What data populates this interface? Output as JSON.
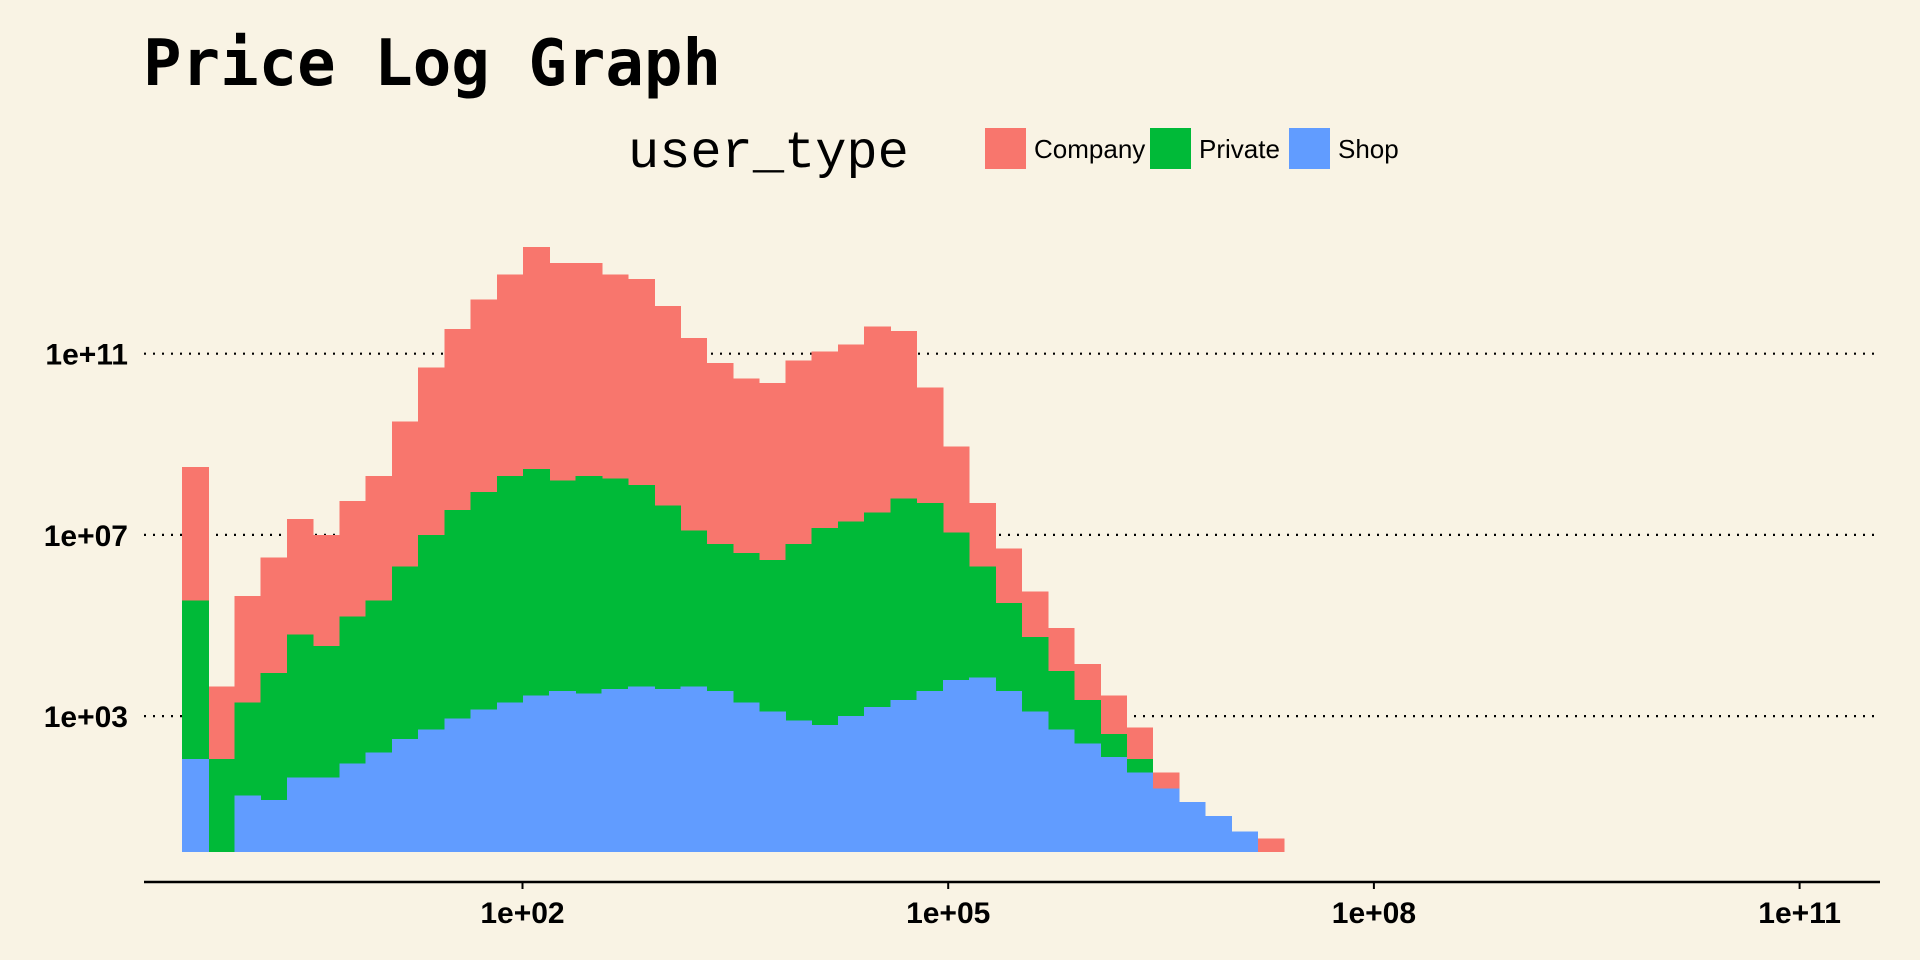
{
  "chart_data": {
    "type": "bar",
    "stacked": true,
    "title": "Price Log Graph",
    "xlabel": "",
    "ylabel": "",
    "x_scale": "log10",
    "y_scale": "log10 cumulative",
    "x_ticks": [
      "1e+02",
      "1e+05",
      "1e+08",
      "1e+11"
    ],
    "y_ticks": [
      "1e+03",
      "1e+07",
      "1e+11"
    ],
    "xlim_log10": [
      -1,
      11.6
    ],
    "ylim_log10": [
      -0.2,
      13.2
    ],
    "bin_range_log10": [
      -0.4,
      7.55
    ],
    "bin_count": 43,
    "grid": "horizontal dotted",
    "legend": {
      "title": "user_type",
      "position": "top",
      "entries": [
        {
          "label": "Company",
          "color": "#F8766D"
        },
        {
          "label": "Private",
          "color": "#00BA38"
        },
        {
          "label": "Shop",
          "color": "#619CFF"
        }
      ]
    },
    "series": [
      {
        "name": "Shop",
        "color": "#619CFF",
        "cumulative_log10": [
          2.05,
          0,
          1.25,
          1.15,
          1.65,
          1.65,
          1.95,
          2.2,
          2.5,
          2.7,
          2.95,
          3.15,
          3.3,
          3.45,
          3.55,
          3.5,
          3.6,
          3.65,
          3.6,
          3.65,
          3.55,
          3.3,
          3.1,
          2.9,
          2.8,
          3.0,
          3.2,
          3.35,
          3.55,
          3.8,
          3.85,
          3.55,
          3.1,
          2.7,
          2.4,
          2.1,
          1.75,
          1.4,
          1.1,
          0.8,
          0.45,
          0,
          0
        ]
      },
      {
        "name": "Private",
        "color": "#00BA38",
        "cumulative_log10": [
          5.55,
          2.05,
          3.3,
          3.95,
          4.8,
          4.55,
          5.2,
          5.55,
          6.3,
          7.0,
          7.55,
          7.95,
          8.3,
          8.45,
          8.2,
          8.3,
          8.25,
          8.1,
          7.65,
          7.1,
          6.8,
          6.6,
          6.45,
          6.8,
          7.15,
          7.3,
          7.5,
          7.8,
          7.7,
          7.05,
          6.3,
          5.5,
          4.75,
          4.0,
          3.35,
          2.6,
          2.05,
          1.25,
          0.75,
          0,
          0,
          0,
          0
        ]
      },
      {
        "name": "Company",
        "color": "#F8766D",
        "cumulative_log10": [
          8.5,
          3.65,
          5.65,
          6.5,
          7.35,
          7.0,
          7.75,
          8.3,
          9.5,
          10.7,
          11.55,
          12.2,
          12.75,
          13.35,
          13.0,
          13.0,
          12.75,
          12.65,
          12.05,
          11.35,
          10.8,
          10.45,
          10.35,
          10.85,
          11.05,
          11.2,
          11.6,
          11.5,
          10.25,
          8.95,
          7.7,
          6.7,
          5.75,
          4.95,
          4.15,
          3.45,
          2.75,
          1.75,
          0,
          0,
          0,
          0.3,
          0
        ]
      }
    ]
  }
}
